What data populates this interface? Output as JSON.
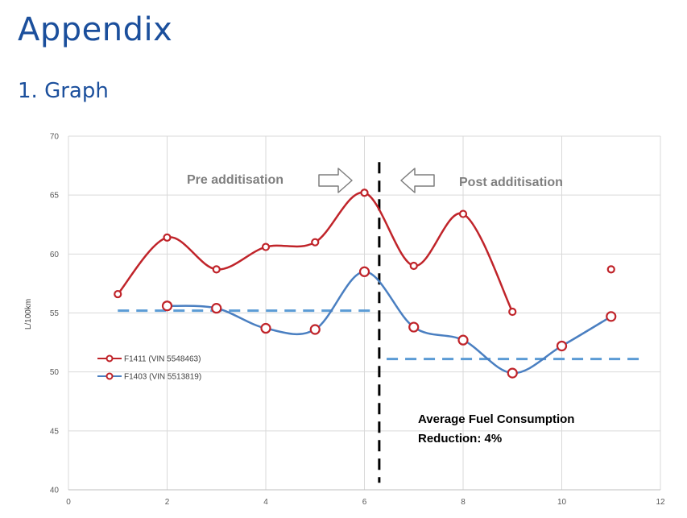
{
  "page": {
    "title": "Appendix",
    "subtitle": "1. Graph"
  },
  "chart_data": {
    "type": "line",
    "title": "",
    "xlabel": "",
    "ylabel": "L/100km",
    "xlim": [
      0,
      12
    ],
    "ylim": [
      40,
      70
    ],
    "xticks": [
      "0",
      "2",
      "4",
      "6",
      "8",
      "10",
      "12"
    ],
    "yticks": [
      "40",
      "45",
      "50",
      "55",
      "60",
      "65",
      "70"
    ],
    "grid": true,
    "legend_position": "left",
    "series": [
      {
        "name": "F1411 (VIN 5548463)",
        "color": "#c0242a",
        "points": [
          [
            1,
            56.6
          ],
          [
            2,
            61.4
          ],
          [
            3,
            58.7
          ],
          [
            4,
            60.6
          ],
          [
            5,
            61.0
          ],
          [
            6,
            65.2
          ],
          [
            7,
            59.0
          ],
          [
            8,
            63.4
          ],
          [
            9,
            55.1
          ],
          [
            11,
            58.7
          ]
        ],
        "line_segments": [
          [
            1,
            2,
            3,
            4,
            5,
            6,
            7,
            8,
            9
          ]
        ]
      },
      {
        "name": "F1403 (VIN 5513819)",
        "color": "#4a7fc1",
        "points": [
          [
            2,
            55.6
          ],
          [
            3,
            55.4
          ],
          [
            4,
            53.7
          ],
          [
            5,
            53.6
          ],
          [
            6,
            58.5
          ],
          [
            7,
            53.8
          ],
          [
            8,
            52.7
          ],
          [
            9,
            49.9
          ],
          [
            10,
            52.2
          ],
          [
            11,
            54.7
          ]
        ],
        "line_segments": [
          [
            2,
            3,
            4,
            5,
            6,
            7,
            8,
            9,
            10,
            11
          ]
        ]
      }
    ],
    "reference_lines": [
      {
        "kind": "average",
        "x_start": 1,
        "x_end": 6.25,
        "y": 55.2,
        "color": "#5b9bd5",
        "style": "dashed"
      },
      {
        "kind": "average",
        "x_start": 6.45,
        "x_end": 11.6,
        "y": 51.1,
        "color": "#5b9bd5",
        "style": "dashed"
      },
      {
        "kind": "divider",
        "x": 6.3,
        "y_start": 40.6,
        "y_end": 67.8,
        "color": "#000000",
        "style": "dashed"
      }
    ],
    "annotations": {
      "pre": "Pre additisation",
      "post": "Post additisation",
      "reduction_line1": "Average Fuel Consumption",
      "reduction_line2": "Reduction: 4%"
    },
    "arrow_color": "#7f7f7f"
  }
}
